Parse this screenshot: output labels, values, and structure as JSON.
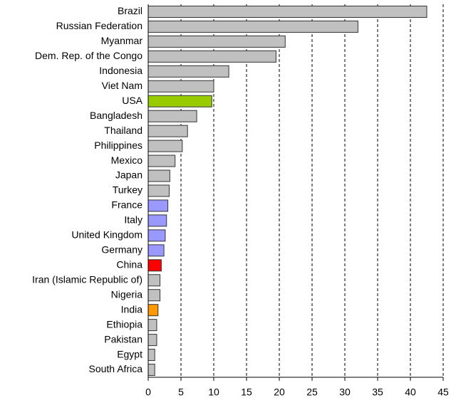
{
  "chart_data": {
    "type": "hbar",
    "categories": [
      "Brazil",
      "Russian Federation",
      "Myanmar",
      "Dem. Rep. of the Congo",
      "Indonesia",
      "Viet Nam",
      "USA",
      "Bangladesh",
      "Thailand",
      "Philippines",
      "Mexico",
      "Japan",
      "Turkey",
      "France",
      "Italy",
      "United Kingdom",
      "Germany",
      "China",
      "Iran (Islamic Republic of)",
      "Nigeria",
      "India",
      "Ethiopia",
      "Pakistan",
      "Egypt",
      "South Africa"
    ],
    "values": [
      42.5,
      32,
      20.9,
      19.5,
      12.3,
      10,
      9.7,
      7.4,
      6.0,
      5.2,
      4.1,
      3.3,
      3.2,
      3.0,
      2.8,
      2.6,
      2.4,
      2.0,
      1.8,
      1.8,
      1.5,
      1.3,
      1.3,
      1.0,
      1.0
    ],
    "colors": [
      "#c0c0c0",
      "#c0c0c0",
      "#c0c0c0",
      "#c0c0c0",
      "#c0c0c0",
      "#c0c0c0",
      "#99cc00",
      "#c0c0c0",
      "#c0c0c0",
      "#c0c0c0",
      "#c0c0c0",
      "#c0c0c0",
      "#c0c0c0",
      "#9999ff",
      "#9999ff",
      "#9999ff",
      "#9999ff",
      "#ff0000",
      "#c0c0c0",
      "#c0c0c0",
      "#ff9900",
      "#c0c0c0",
      "#c0c0c0",
      "#c0c0c0",
      "#c0c0c0"
    ],
    "xlim": [
      0,
      45
    ],
    "xticks": [
      0,
      5,
      10,
      15,
      20,
      25,
      30,
      35,
      40,
      45
    ],
    "grid": true
  }
}
